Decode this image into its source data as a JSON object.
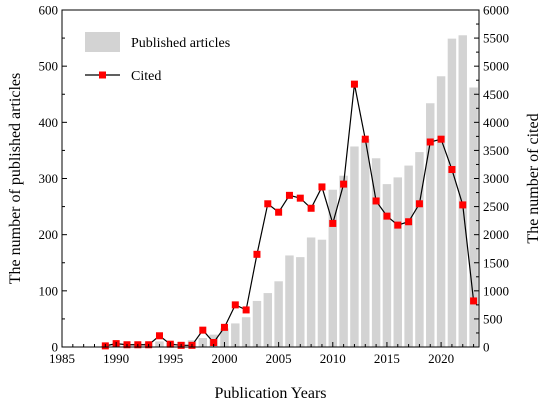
{
  "chart_data": {
    "type": "bar",
    "xlabel": "Publication Years",
    "ylabel_left": "The number of published articles",
    "ylabel_right": "The number of cited",
    "xlim": [
      1985,
      2023.5
    ],
    "ylim_left": [
      0,
      600
    ],
    "ylim_right": [
      0,
      6000
    ],
    "x_ticks": [
      "1985",
      "1990",
      "1995",
      "2000",
      "2005",
      "2010",
      "2015",
      "2020"
    ],
    "y_left_ticks": [
      "0",
      "100",
      "200",
      "300",
      "400",
      "500",
      "600"
    ],
    "y_right_ticks": [
      "0",
      "500",
      "1000",
      "1500",
      "2000",
      "2500",
      "3000",
      "3500",
      "4000",
      "4500",
      "5000",
      "5500",
      "6000"
    ],
    "legend_position": "top-left",
    "grid": false,
    "colors": {
      "bars": "#d3d3d3",
      "line": "#000000",
      "markers": "#ff0000"
    },
    "years": [
      1989,
      1990,
      1991,
      1992,
      1993,
      1994,
      1995,
      1996,
      1997,
      1998,
      1999,
      2000,
      2001,
      2002,
      2003,
      2004,
      2005,
      2006,
      2007,
      2008,
      2009,
      2010,
      2011,
      2012,
      2013,
      2014,
      2015,
      2016,
      2017,
      2018,
      2019,
      2020,
      2021,
      2022,
      2023
    ],
    "series": [
      {
        "name": "Published articles",
        "type": "bar",
        "axis": "left",
        "values": [
          2,
          4,
          5,
          6,
          7,
          10,
          8,
          9,
          12,
          16,
          22,
          33,
          42,
          53,
          82,
          96,
          117,
          163,
          160,
          195,
          191,
          280,
          305,
          357,
          370,
          336,
          290,
          302,
          323,
          347,
          434,
          482,
          549,
          555,
          462
        ]
      },
      {
        "name": "Cited",
        "type": "line",
        "axis": "right",
        "values": [
          20,
          60,
          40,
          40,
          40,
          200,
          50,
          30,
          30,
          300,
          80,
          350,
          750,
          660,
          1650,
          2550,
          2400,
          2700,
          2650,
          2470,
          2850,
          2200,
          2900,
          4680,
          3700,
          2600,
          2330,
          2170,
          2230,
          2550,
          3650,
          3700,
          3160,
          2530,
          820
        ]
      }
    ]
  }
}
